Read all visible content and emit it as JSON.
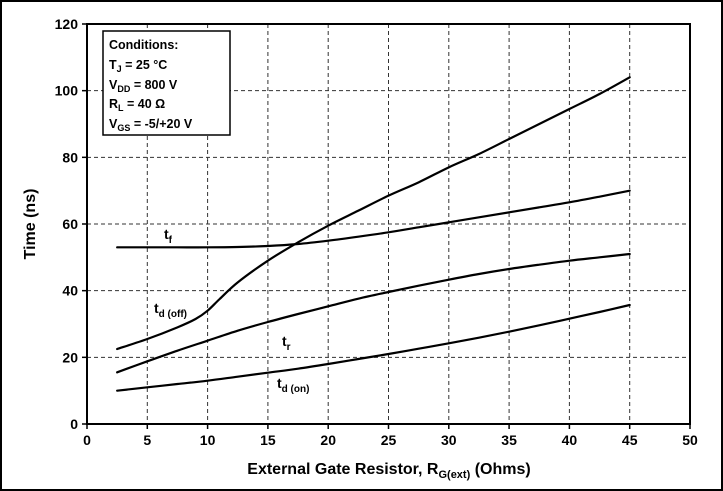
{
  "chart_data": {
    "type": "line",
    "title": "",
    "xlabel": "External Gate Resistor, R",
    "xlabel_sub": "G(ext)",
    "xlabel_unit": " (Ohms)",
    "ylabel": "Time (ns)",
    "xlim": [
      0,
      50
    ],
    "ylim": [
      0,
      120
    ],
    "xticks": [
      0,
      5,
      10,
      15,
      20,
      25,
      30,
      35,
      40,
      45,
      50
    ],
    "yticks": [
      0,
      20,
      40,
      60,
      80,
      100,
      120
    ],
    "grid": true,
    "conditions": {
      "title": "Conditions:",
      "lines": [
        {
          "base": "T",
          "sub": "J",
          "rest": " = 25 °C"
        },
        {
          "base": "V",
          "sub": "DD",
          "rest": " = 800 V"
        },
        {
          "base": "R",
          "sub": "L",
          "rest": " = 40 Ω"
        },
        {
          "base": "V",
          "sub": "GS",
          "rest": " = -5/+20 V"
        }
      ]
    },
    "series": [
      {
        "name": "t_f",
        "label_base": "t",
        "label_sub": "f",
        "x": [
          2.5,
          5,
          7.5,
          10,
          12.5,
          15,
          17.5,
          20,
          22.5,
          25,
          27.5,
          30,
          32.5,
          35,
          37.5,
          40,
          42.5,
          45
        ],
        "y": [
          53,
          53,
          53,
          53,
          53.1,
          53.4,
          54,
          55,
          56.2,
          57.5,
          59,
          60.5,
          62,
          63.5,
          65,
          66.5,
          68.2,
          70
        ]
      },
      {
        "name": "t_d(off)",
        "label_base": "t",
        "label_sub": "d (off)",
        "x": [
          2.5,
          5,
          7.5,
          9,
          10,
          11,
          12.5,
          15,
          17.5,
          20,
          22.5,
          25,
          27.5,
          30,
          32.5,
          35,
          37.5,
          40,
          42.5,
          45
        ],
        "y": [
          22.5,
          25.5,
          29,
          31.5,
          34,
          37.5,
          42.5,
          49,
          54.5,
          59.5,
          64,
          68.5,
          72.5,
          77,
          81,
          85.5,
          90,
          94.5,
          99,
          104
        ]
      },
      {
        "name": "t_r",
        "label_base": "t",
        "label_sub": "r",
        "x": [
          2.5,
          5,
          7.5,
          10,
          12.5,
          15,
          17.5,
          20,
          22.5,
          25,
          27.5,
          30,
          32.5,
          35,
          37.5,
          40,
          42.5,
          45
        ],
        "y": [
          15.5,
          18.8,
          22,
          25,
          28,
          30.6,
          33,
          35.3,
          37.6,
          39.6,
          41.5,
          43.3,
          45,
          46.5,
          47.8,
          49,
          50,
          51
        ]
      },
      {
        "name": "t_d(on)",
        "label_base": "t",
        "label_sub": "d (on)",
        "x": [
          2.5,
          5,
          7.5,
          10,
          12.5,
          15,
          17.5,
          20,
          22.5,
          25,
          27.5,
          30,
          32.5,
          35,
          37.5,
          40,
          42.5,
          45
        ],
        "y": [
          10,
          11,
          12,
          13,
          14.2,
          15.4,
          16.6,
          18,
          19.5,
          21,
          22.6,
          24.2,
          25.9,
          27.7,
          29.6,
          31.6,
          33.6,
          35.7
        ]
      }
    ]
  }
}
